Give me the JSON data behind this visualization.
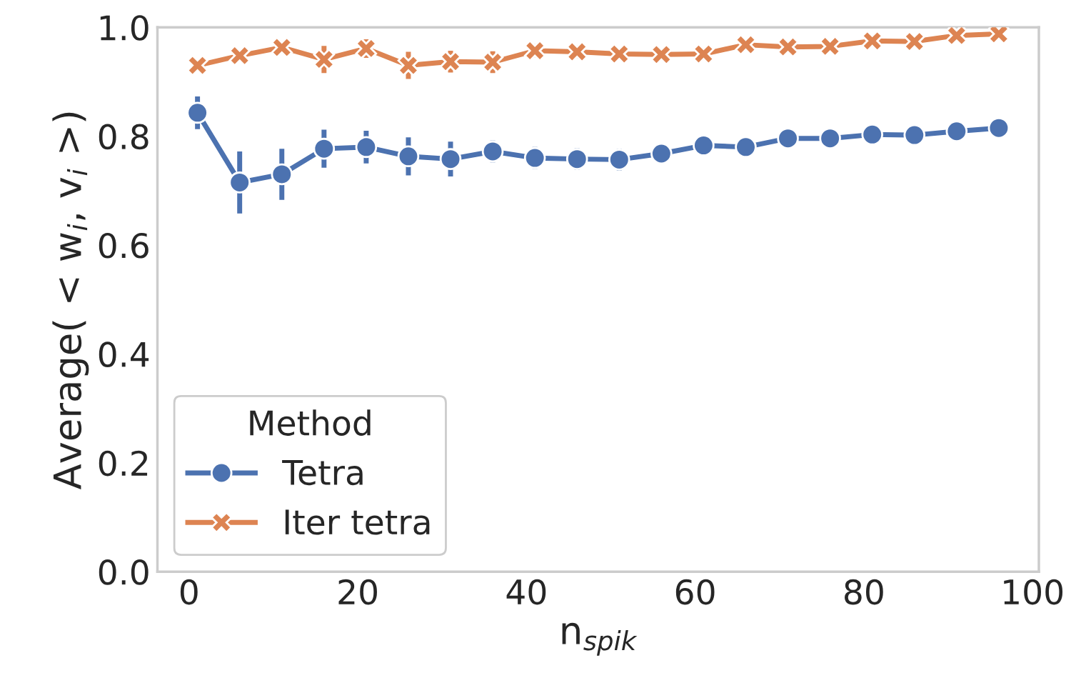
{
  "chart_data": {
    "type": "line",
    "xlabel": "n$_{spik}$",
    "ylabel": "Average( < w$_{i}$, v$_{i}$ >)",
    "x": [
      1,
      6,
      11,
      16,
      21,
      26,
      31,
      36,
      41,
      46,
      51,
      56,
      61,
      66,
      71,
      76,
      81,
      86,
      91,
      96
    ],
    "series": [
      {
        "name": "Tetra",
        "color": "#4c72b0",
        "marker": "circle",
        "values": [
          0.843,
          0.715,
          0.73,
          0.777,
          0.78,
          0.763,
          0.758,
          0.772,
          0.76,
          0.758,
          0.757,
          0.768,
          0.783,
          0.78,
          0.796,
          0.796,
          0.803,
          0.802,
          0.809,
          0.815
        ],
        "errors": [
          0.03,
          0.057,
          0.047,
          0.035,
          0.03,
          0.035,
          0.032,
          0.02,
          0.02,
          0.02,
          0.02,
          0.015,
          0.01,
          0.013,
          0.01,
          0.008,
          0.006,
          0.005,
          0.006,
          0.004
        ]
      },
      {
        "name": "Iter tetra",
        "color": "#dd8452",
        "marker": "cross",
        "values": [
          0.93,
          0.948,
          0.963,
          0.941,
          0.961,
          0.93,
          0.937,
          0.936,
          0.957,
          0.955,
          0.951,
          0.95,
          0.951,
          0.968,
          0.964,
          0.965,
          0.975,
          0.974,
          0.985,
          0.988
        ],
        "errors": [
          0.01,
          0.005,
          0.006,
          0.025,
          0.017,
          0.025,
          0.02,
          0.02,
          0.012,
          0.012,
          0.008,
          0.008,
          0.008,
          0.007,
          0.005,
          0.006,
          0.005,
          0.004,
          0.005,
          0.004
        ]
      }
    ],
    "legend_title": "Method",
    "legend": "bottom left",
    "grid": false,
    "xlim": [
      -3.75,
      100.75
    ],
    "xticks": [
      0,
      20,
      40,
      60,
      80,
      100
    ],
    "ylim": [
      0.0,
      1.0
    ],
    "yticks": [
      {
        "value": 0.0,
        "label": "0.0"
      },
      {
        "value": 0.2,
        "label": "0.2"
      },
      {
        "value": 0.4,
        "label": "0.4"
      },
      {
        "value": 0.6,
        "label": "0.6"
      },
      {
        "value": 0.8,
        "label": "0.8"
      },
      {
        "value": 1.0,
        "label": "1.0"
      }
    ]
  }
}
